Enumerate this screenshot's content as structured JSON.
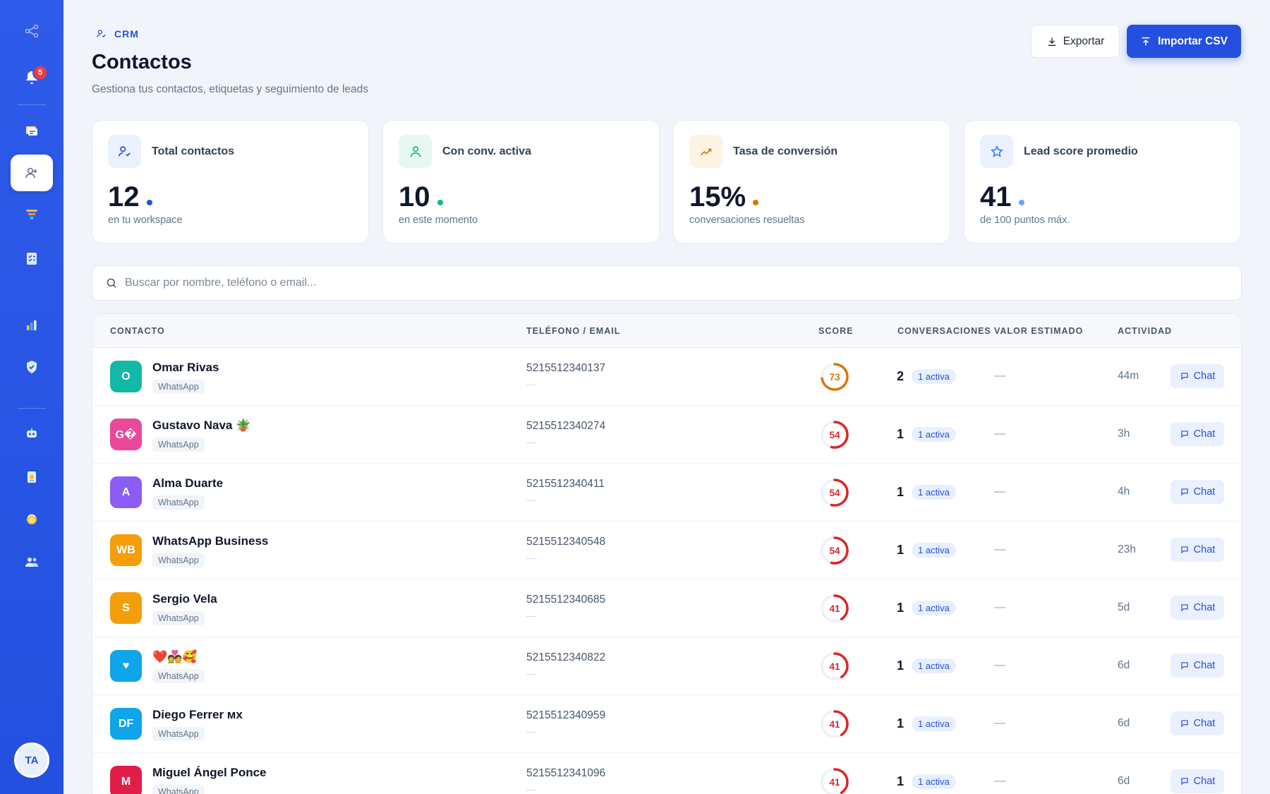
{
  "sidebar": {
    "notification_count": "5",
    "user_initials": "TA"
  },
  "header": {
    "breadcrumb": "CRM",
    "title": "Contactos",
    "subtitle": "Gestiona tus contactos, etiquetas y seguimiento de leads",
    "export_label": "Exportar",
    "import_label": "Importar CSV"
  },
  "stats": [
    {
      "label": "Total contactos",
      "value": "12",
      "caption": "en tu workspace",
      "icon": "user-check-icon",
      "color": "#2450df"
    },
    {
      "label": "Con conv. activa",
      "value": "10",
      "caption": "en este momento",
      "icon": "user-icon",
      "color": "#10b981"
    },
    {
      "label": "Tasa de conversión",
      "value": "15%",
      "caption": "conversaciones resueltas",
      "icon": "trending-up-icon",
      "color": "#d97706"
    },
    {
      "label": "Lead score promedio",
      "value": "41",
      "caption": "de 100 puntos máx.",
      "icon": "star-icon",
      "color": "#3b82f6"
    }
  ],
  "search": {
    "placeholder": "Buscar por nombre, teléfono o email..."
  },
  "table": {
    "columns": [
      "CONTACTO",
      "TELÉFONO / EMAIL",
      "SCORE",
      "CONVERSACIONES",
      "VALOR ESTIMADO",
      "ACTIVIDAD"
    ],
    "rows": [
      {
        "initials": "O",
        "name": "Omar Rivas",
        "channel": "WhatsApp",
        "phone": "5215512340137",
        "email": "—",
        "score": 73,
        "score_label": "73",
        "conversations": "1",
        "conv_count": "2",
        "active_badge": "1 activa",
        "value": "—",
        "activity": "44m",
        "chat_label": "Chat",
        "avatar_color": "#14b8a6"
      },
      {
        "initials": "G�",
        "name": "Gustavo Nava 🪴",
        "channel": "WhatsApp",
        "phone": "5215512340274",
        "email": "—",
        "score": 54,
        "score_label": "54",
        "conv_count": "1",
        "active_badge": "1 activa",
        "value": "—",
        "activity": "3h",
        "chat_label": "Chat",
        "avatar_color": "#ec4899"
      },
      {
        "initials": "A",
        "name": "Alma Duarte",
        "channel": "WhatsApp",
        "phone": "5215512340411",
        "email": "—",
        "score": 54,
        "score_label": "54",
        "conv_count": "1",
        "active_badge": "1 activa",
        "value": "—",
        "activity": "4h",
        "chat_label": "Chat",
        "avatar_color": "#8b5cf6"
      },
      {
        "initials": "WB",
        "name": "WhatsApp Business",
        "channel": "WhatsApp",
        "phone": "5215512340548",
        "email": "—",
        "score": 54,
        "score_label": "54",
        "conv_count": "1",
        "active_badge": "1 activa",
        "value": "—",
        "activity": "23h",
        "chat_label": "Chat",
        "avatar_color": "#f59e0b"
      },
      {
        "initials": "S",
        "name": "Sergio Vela",
        "channel": "WhatsApp",
        "phone": "5215512340685",
        "email": "—",
        "score": 41,
        "score_label": "41",
        "conv_count": "1",
        "active_badge": "1 activa",
        "value": "—",
        "activity": "5d",
        "chat_label": "Chat",
        "avatar_color": "#f59e0b"
      },
      {
        "initials": "♥",
        "name": "❤️💑🥰",
        "channel": "WhatsApp",
        "phone": "5215512340822",
        "email": "—",
        "score": 41,
        "score_label": "41",
        "conv_count": "1",
        "active_badge": "1 activa",
        "value": "—",
        "activity": "6d",
        "chat_label": "Chat",
        "avatar_color": "#0ea5e9"
      },
      {
        "initials": "DF",
        "name": "Diego Ferrer ᴍx",
        "channel": "WhatsApp",
        "phone": "5215512340959",
        "email": "—",
        "score": 41,
        "score_label": "41",
        "conv_count": "1",
        "active_badge": "1 activa",
        "value": "—",
        "activity": "6d",
        "chat_label": "Chat",
        "avatar_color": "#0ea5e9"
      },
      {
        "initials": "M",
        "name": "Miguel Ángel Ponce",
        "channel": "WhatsApp",
        "phone": "5215512341096",
        "email": "—",
        "score": 41,
        "score_label": "41",
        "conv_count": "1",
        "active_badge": "1 activa",
        "value": "—",
        "activity": "6d",
        "chat_label": "Chat",
        "avatar_color": "#e11d48"
      }
    ]
  }
}
